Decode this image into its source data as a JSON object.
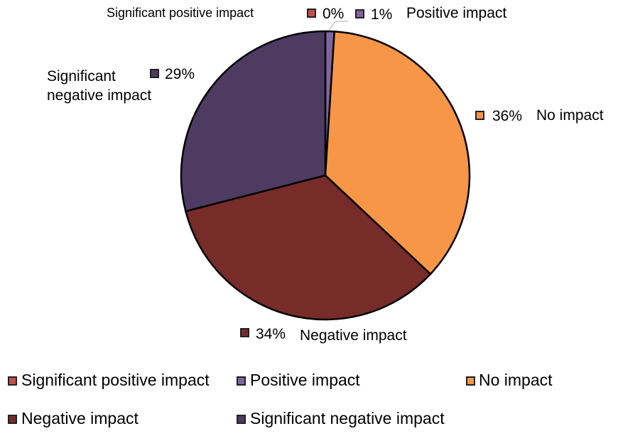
{
  "chart_data": {
    "type": "pie",
    "title": "",
    "start_angle": "top, clockwise",
    "slices": [
      {
        "name": "Significant positive impact",
        "value": 0,
        "label": "0%",
        "color": "#c0504d"
      },
      {
        "name": "Positive impact",
        "value": 1,
        "label": "1%",
        "color": "#8064a2"
      },
      {
        "name": "No impact",
        "value": 36,
        "label": "36%",
        "color": "#f79646"
      },
      {
        "name": "Negative impact",
        "value": 34,
        "label": "34%",
        "color": "#772c2a"
      },
      {
        "name": "Significant negative impact",
        "value": 29,
        "label": "29%",
        "color": "#4d3b62"
      }
    ],
    "legend": {
      "placement": "bottom"
    },
    "sig_neg_label_lines": [
      "Significant",
      "negative impact"
    ]
  }
}
